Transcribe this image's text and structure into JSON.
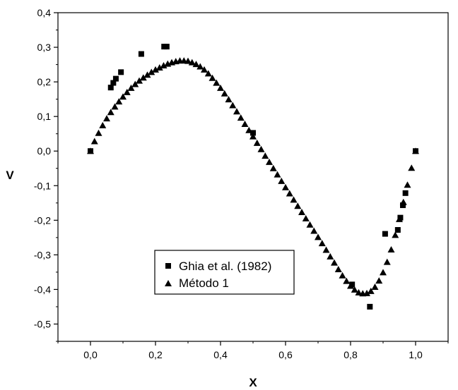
{
  "chart_data": {
    "type": "scatter",
    "title": "",
    "xlabel": "X",
    "ylabel": "V",
    "xlim": [
      -0.1,
      1.1
    ],
    "ylim": [
      -0.55,
      0.4
    ],
    "xticks": [
      0.0,
      0.2,
      0.4,
      0.6,
      0.8,
      1.0
    ],
    "xtick_labels": [
      "0,0",
      "0,2",
      "0,4",
      "0,6",
      "0,8",
      "1,0"
    ],
    "yticks": [
      0.4,
      0.3,
      0.2,
      0.1,
      0.0,
      -0.1,
      -0.2,
      -0.3,
      -0.4,
      -0.5
    ],
    "ytick_labels": [
      "0,4",
      "0,3",
      "0,2",
      "0,1",
      "0,0",
      "-0,1",
      "-0,2",
      "-0,3",
      "-0,4",
      "-0,5"
    ],
    "grid": false,
    "legend_position": "lower-left",
    "series": [
      {
        "name": "Ghia et al. (1982)",
        "marker": "square",
        "color": "#000000",
        "x": [
          0.0,
          0.0625,
          0.0703,
          0.0781,
          0.0938,
          0.1563,
          0.2266,
          0.2344,
          0.5,
          0.8047,
          0.8594,
          0.9063,
          0.9453,
          0.9531,
          0.9609,
          0.9688,
          1.0
        ],
        "y": [
          0.0,
          0.1836,
          0.1971,
          0.2092,
          0.2281,
          0.2807,
          0.302,
          0.302,
          0.0526,
          -0.3856,
          -0.4499,
          -0.2393,
          -0.2279,
          -0.1925,
          -0.1566,
          -0.1215,
          0.0
        ]
      },
      {
        "name": "Método 1",
        "marker": "triangle",
        "color": "#000000",
        "x": [
          0.0,
          0.0125,
          0.025,
          0.0375,
          0.05,
          0.0625,
          0.075,
          0.0875,
          0.1,
          0.1125,
          0.125,
          0.1375,
          0.15,
          0.1625,
          0.175,
          0.1875,
          0.2,
          0.2125,
          0.225,
          0.2375,
          0.25,
          0.2625,
          0.275,
          0.2875,
          0.3,
          0.3125,
          0.325,
          0.3375,
          0.35,
          0.3625,
          0.375,
          0.3875,
          0.4,
          0.4125,
          0.425,
          0.4375,
          0.45,
          0.4625,
          0.475,
          0.4875,
          0.5,
          0.5125,
          0.525,
          0.5375,
          0.55,
          0.5625,
          0.575,
          0.5875,
          0.6,
          0.6125,
          0.625,
          0.6375,
          0.65,
          0.6625,
          0.675,
          0.6875,
          0.7,
          0.7125,
          0.725,
          0.7375,
          0.75,
          0.7625,
          0.775,
          0.7875,
          0.8,
          0.8125,
          0.825,
          0.8375,
          0.85,
          0.8625,
          0.875,
          0.8875,
          0.9,
          0.9125,
          0.925,
          0.9375,
          0.95,
          0.9625,
          0.975,
          0.9875,
          1.0
        ],
        "y": [
          0.0,
          0.028,
          0.052,
          0.074,
          0.094,
          0.112,
          0.128,
          0.143,
          0.157,
          0.17,
          0.182,
          0.193,
          0.203,
          0.212,
          0.22,
          0.228,
          0.235,
          0.241,
          0.247,
          0.252,
          0.256,
          0.259,
          0.261,
          0.261,
          0.26,
          0.256,
          0.251,
          0.244,
          0.235,
          0.224,
          0.211,
          0.197,
          0.182,
          0.166,
          0.149,
          0.132,
          0.114,
          0.096,
          0.078,
          0.06,
          0.042,
          0.023,
          0.005,
          -0.014,
          -0.032,
          -0.05,
          -0.068,
          -0.087,
          -0.105,
          -0.123,
          -0.141,
          -0.159,
          -0.177,
          -0.195,
          -0.213,
          -0.231,
          -0.249,
          -0.267,
          -0.286,
          -0.305,
          -0.323,
          -0.342,
          -0.36,
          -0.376,
          -0.39,
          -0.401,
          -0.409,
          -0.412,
          -0.411,
          -0.405,
          -0.393,
          -0.375,
          -0.351,
          -0.321,
          -0.285,
          -0.243,
          -0.197,
          -0.148,
          -0.098,
          -0.049,
          0.0
        ]
      }
    ]
  }
}
